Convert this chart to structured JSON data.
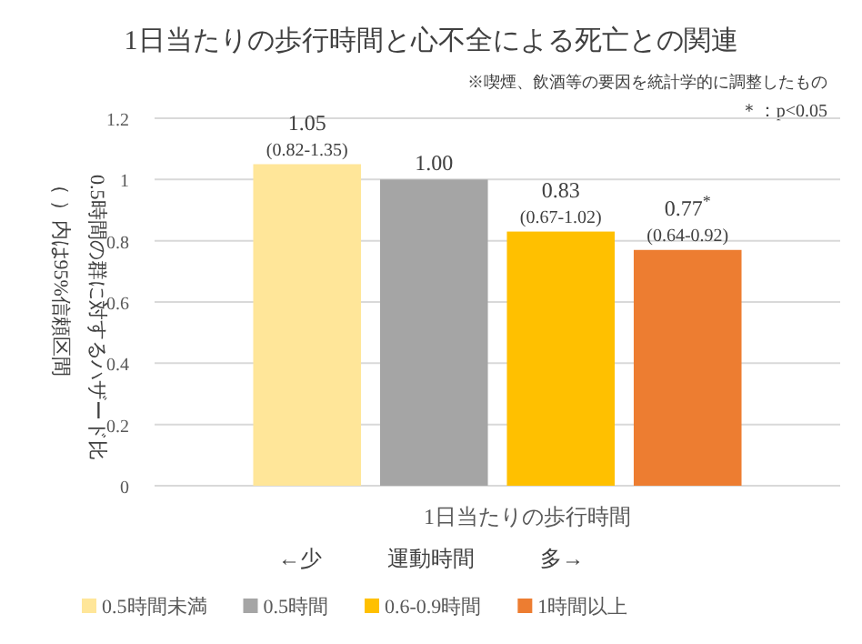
{
  "chart_data": {
    "type": "bar",
    "title": "1日当たりの歩行時間と心不全による死亡との関連",
    "annotations": [
      "※喫煙、飲酒等の要因を統計学的に調整したもの",
      "＊：p<0.05",
      "←少　　　運動時間　　　多→",
      "（ ）内は95%信頼区間"
    ],
    "xlabel": "1日当たりの歩行時間",
    "ylabel": "0.5時間の群に対するハザード比",
    "categories": [
      null
    ],
    "series": [
      {
        "name": "0.5時間未満",
        "color": "#ffe699",
        "values": [
          1.05
        ],
        "value_labels": [
          "1.05\n(0.82-1.35)"
        ]
      },
      {
        "name": "0.5時間",
        "color": "#a5a5a5",
        "values": [
          1.0
        ],
        "value_labels": [
          "1.00"
        ]
      },
      {
        "name": "0.6-0.9時間",
        "color": "#ffc000",
        "values": [
          0.83
        ],
        "value_labels": [
          "0.83\n(0.67-1.02)"
        ]
      },
      {
        "name": "1時間以上",
        "color": "#ed7d31",
        "values": [
          0.77
        ],
        "value_labels": [
          "0.77$^{*}$\n(0.64-0.92)"
        ]
      }
    ],
    "ylim": [
      0,
      1.2
    ],
    "yticks": [
      0,
      0.2,
      0.4,
      0.6,
      0.8,
      1,
      1.2
    ],
    "grid": "y",
    "legend": "bottom"
  }
}
